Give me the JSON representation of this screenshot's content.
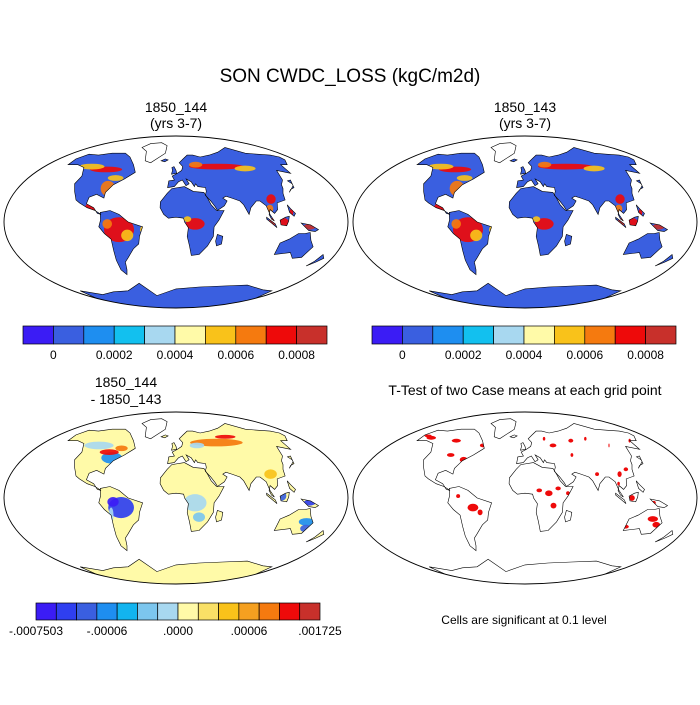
{
  "title": "SON CWDC_LOSS (kgC/m2d)",
  "panels": [
    {
      "title_line1": "1850_144",
      "title_line2": "(yrs 3-7)",
      "kind": "field"
    },
    {
      "title_line1": "1850_143",
      "title_line2": "(yrs 3-7)",
      "kind": "field"
    },
    {
      "title_line1": "1850_144",
      "title_line2": "- 1850_143",
      "kind": "diff"
    },
    {
      "title_line1": "T-Test of two Case means at each grid point",
      "title_line2": "",
      "kind": "ttest"
    }
  ],
  "colorbar_field": {
    "colors": [
      "#3b1cf5",
      "#3a5fe0",
      "#1e8ef0",
      "#12c0ef",
      "#a8d8f0",
      "#fffaa8",
      "#f9c21a",
      "#f57a0f",
      "#ee0a0a",
      "#c8302b"
    ],
    "ticks": [
      "0",
      "0.0002",
      "0.0004",
      "0.0006",
      "0.0008"
    ]
  },
  "colorbar_diff": {
    "colors": [
      "#3b1cf5",
      "#2f3ff0",
      "#3a5fe0",
      "#1e8ef0",
      "#12b4ef",
      "#7cc6ee",
      "#a8d8f0",
      "#fffaa8",
      "#f9e066",
      "#f9c21a",
      "#f5a020",
      "#f57a0f",
      "#ee0a0a",
      "#c8302b"
    ],
    "ticks": [
      "-.0007503",
      "-.00006",
      ".0000",
      ".00006",
      ".001725"
    ]
  },
  "ttest_note": "Cells are significant at 0.1 level",
  "palette": {
    "land_low": "#3a5fe0",
    "high": "#ee0a0a",
    "mid": "#f9c21a",
    "diff_bg": "#fffaa8",
    "diff_light": "#a8d8f0",
    "sig": "#ee0a0a"
  }
}
